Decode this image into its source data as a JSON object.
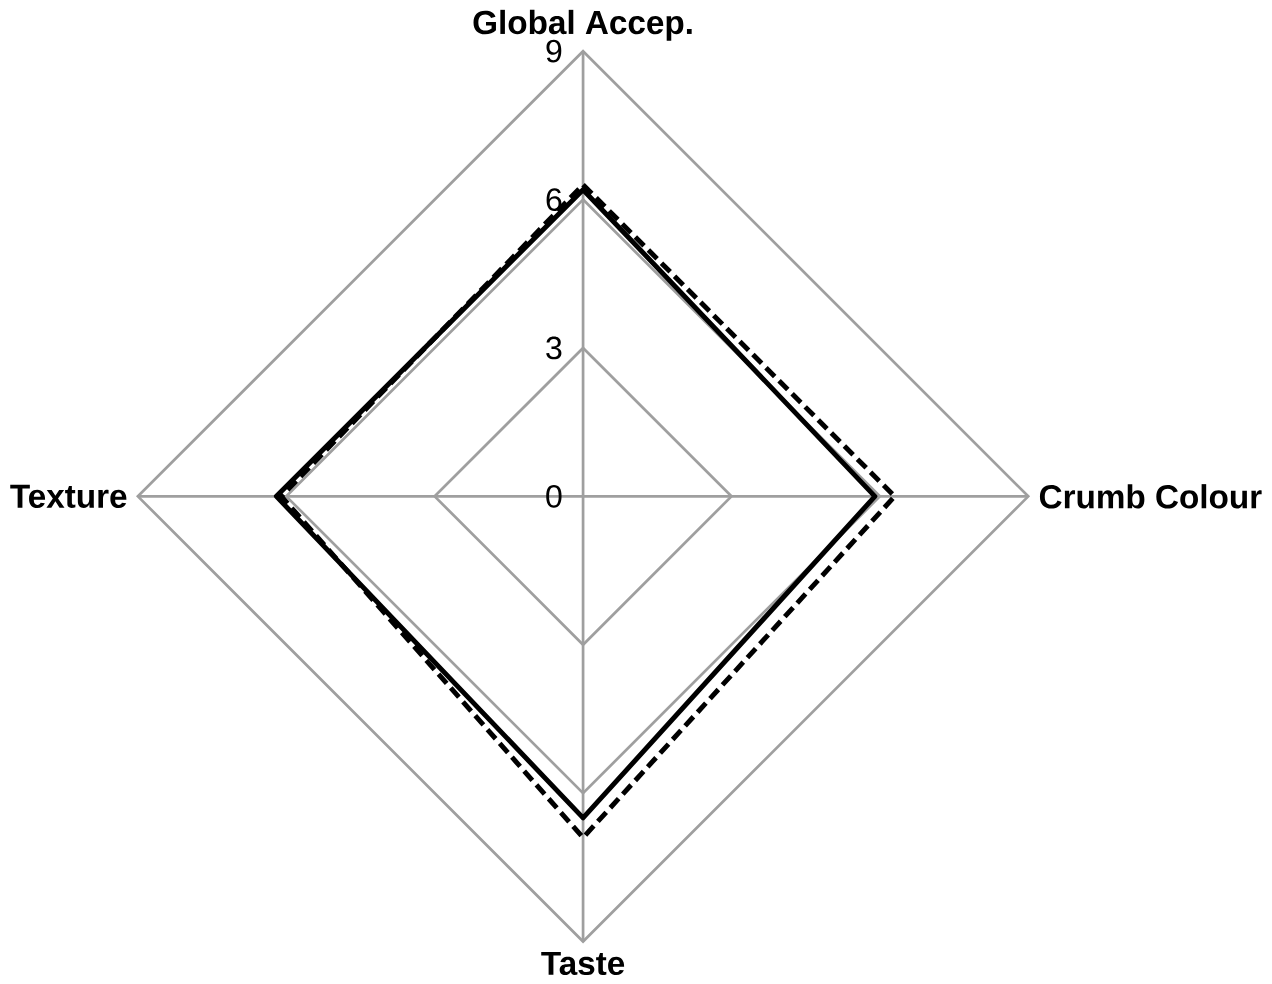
{
  "chart_data": {
    "type": "radar",
    "categories": [
      "Global Accep.",
      "Crumb Colour",
      "Taste",
      "Texture"
    ],
    "ylim": [
      0,
      9
    ],
    "yticks": [
      0,
      3,
      6,
      9
    ],
    "grid": true,
    "series": [
      {
        "color": "#000000",
        "line_style": "solid",
        "values": [
          6.2,
          5.9,
          6.5,
          6.2
        ]
      },
      {
        "color": "#000000",
        "line_style": "dashed",
        "values": [
          6.3,
          6.3,
          6.9,
          6.1
        ]
      }
    ]
  }
}
